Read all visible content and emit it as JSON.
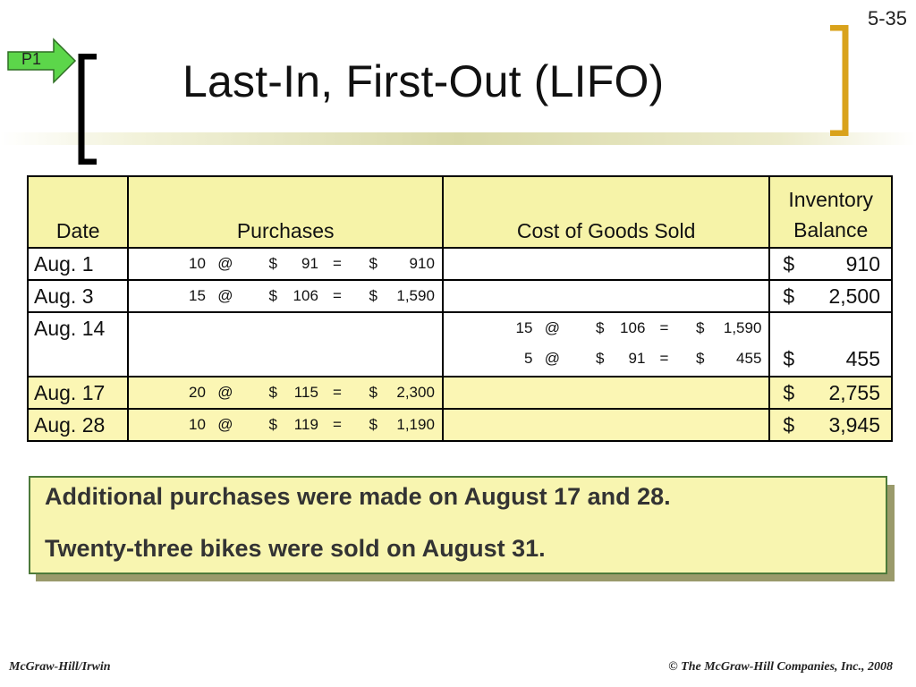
{
  "slide": {
    "number": "5-35",
    "tag": "P1",
    "title": "Last-In, First-Out (LIFO)"
  },
  "table": {
    "headers": {
      "date": "Date",
      "purchases": "Purchases",
      "cogs": "Cost of Goods Sold",
      "inventory_line1": "Inventory",
      "inventory_line2": "Balance"
    },
    "rows": [
      {
        "date": "Aug. 1",
        "purchase": {
          "qty": "10",
          "at": "@",
          "dollar": "$",
          "price": "91",
          "eq": "=",
          "dollar2": "$",
          "total": "910"
        },
        "balance": {
          "dollar": "$",
          "amount": "910"
        }
      },
      {
        "date": "Aug. 3",
        "purchase": {
          "qty": "15",
          "at": "@",
          "dollar": "$",
          "price": "106",
          "eq": "=",
          "dollar2": "$",
          "total": "1,590"
        },
        "balance": {
          "dollar": "$",
          "amount": "2,500"
        }
      },
      {
        "date": "Aug. 14",
        "cogs": [
          {
            "qty": "15",
            "at": "@",
            "dollar": "$",
            "price": "106",
            "eq": "=",
            "dollar2": "$",
            "total": "1,590"
          },
          {
            "qty": "5",
            "at": "@",
            "dollar": "$",
            "price": "91",
            "eq": "=",
            "dollar2": "$",
            "total": "455"
          }
        ],
        "balance": {
          "dollar": "$",
          "amount": "455"
        }
      },
      {
        "date": "Aug. 17",
        "purchase": {
          "qty": "20",
          "at": "@",
          "dollar": "$",
          "price": "115",
          "eq": "=",
          "dollar2": "$",
          "total": "2,300"
        },
        "balance": {
          "dollar": "$",
          "amount": "2,755"
        }
      },
      {
        "date": "Aug. 28",
        "purchase": {
          "qty": "10",
          "at": "@",
          "dollar": "$",
          "price": "119",
          "eq": "=",
          "dollar2": "$",
          "total": "1,190"
        },
        "balance": {
          "dollar": "$",
          "amount": "3,945"
        }
      }
    ]
  },
  "callout": {
    "line1": "Additional purchases were made on August 17 and 28.",
    "line2": "Twenty-three bikes were sold on August 31."
  },
  "footer": {
    "left": "McGraw-Hill/Irwin",
    "right": "© The McGraw-Hill Companies, Inc., 2008"
  },
  "colors": {
    "header_fill": "#f6f3a8",
    "highlight_fill": "#fbf6b4",
    "tag_green": "#5cd64a",
    "bracket_gold": "#d9a21b",
    "callout_border": "#4d7a3a"
  }
}
